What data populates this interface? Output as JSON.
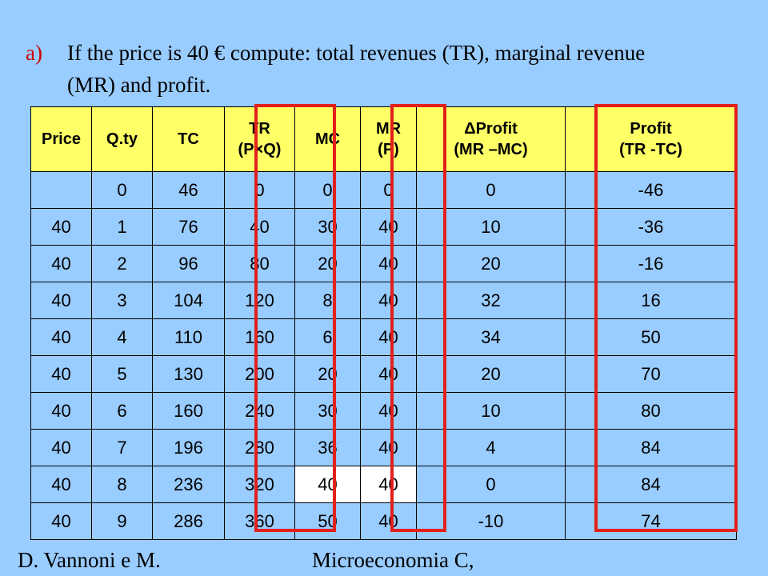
{
  "question": {
    "marker": "a)",
    "line1": "If the price is 40 € compute: total revenues (TR), marginal revenue",
    "line2": "(MR) and profit."
  },
  "table": {
    "headers": [
      {
        "line1": "Price",
        "line2": ""
      },
      {
        "line1": "Q.ty",
        "line2": ""
      },
      {
        "line1": "TC",
        "line2": ""
      },
      {
        "line1": "TR",
        "line2": "(P×Q)"
      },
      {
        "line1": "MC",
        "line2": ""
      },
      {
        "line1": "MR",
        "line2": "(P)"
      },
      {
        "line1": "ΔProfit",
        "line2": "(MR –MC)"
      },
      {
        "line1": "Profit",
        "line2": "(TR -TC)"
      }
    ],
    "rows": [
      [
        "",
        "0",
        "46",
        "0",
        "0",
        "0",
        "0",
        "-46"
      ],
      [
        "40",
        "1",
        "76",
        "40",
        "30",
        "40",
        "10",
        "-36"
      ],
      [
        "40",
        "2",
        "96",
        "80",
        "20",
        "40",
        "20",
        "-16"
      ],
      [
        "40",
        "3",
        "104",
        "120",
        "8",
        "40",
        "32",
        "16"
      ],
      [
        "40",
        "4",
        "110",
        "160",
        "6",
        "40",
        "34",
        "50"
      ],
      [
        "40",
        "5",
        "130",
        "200",
        "20",
        "40",
        "20",
        "70"
      ],
      [
        "40",
        "6",
        "160",
        "240",
        "30",
        "40",
        "10",
        "80"
      ],
      [
        "40",
        "7",
        "196",
        "280",
        "36",
        "40",
        "4",
        "84"
      ],
      [
        "40",
        "8",
        "236",
        "320",
        "40",
        "40",
        "0",
        "84"
      ],
      [
        "40",
        "9",
        "286",
        "360",
        "50",
        "40",
        "-10",
        "74"
      ]
    ]
  },
  "footer": {
    "left": "D. Vannoni e M.",
    "right": "Microeconomia C,"
  },
  "colors": {
    "background": "#99ccff",
    "header_fill": "#ffff66",
    "highlight_border": "#e3201b",
    "marker": "#cc0000"
  }
}
